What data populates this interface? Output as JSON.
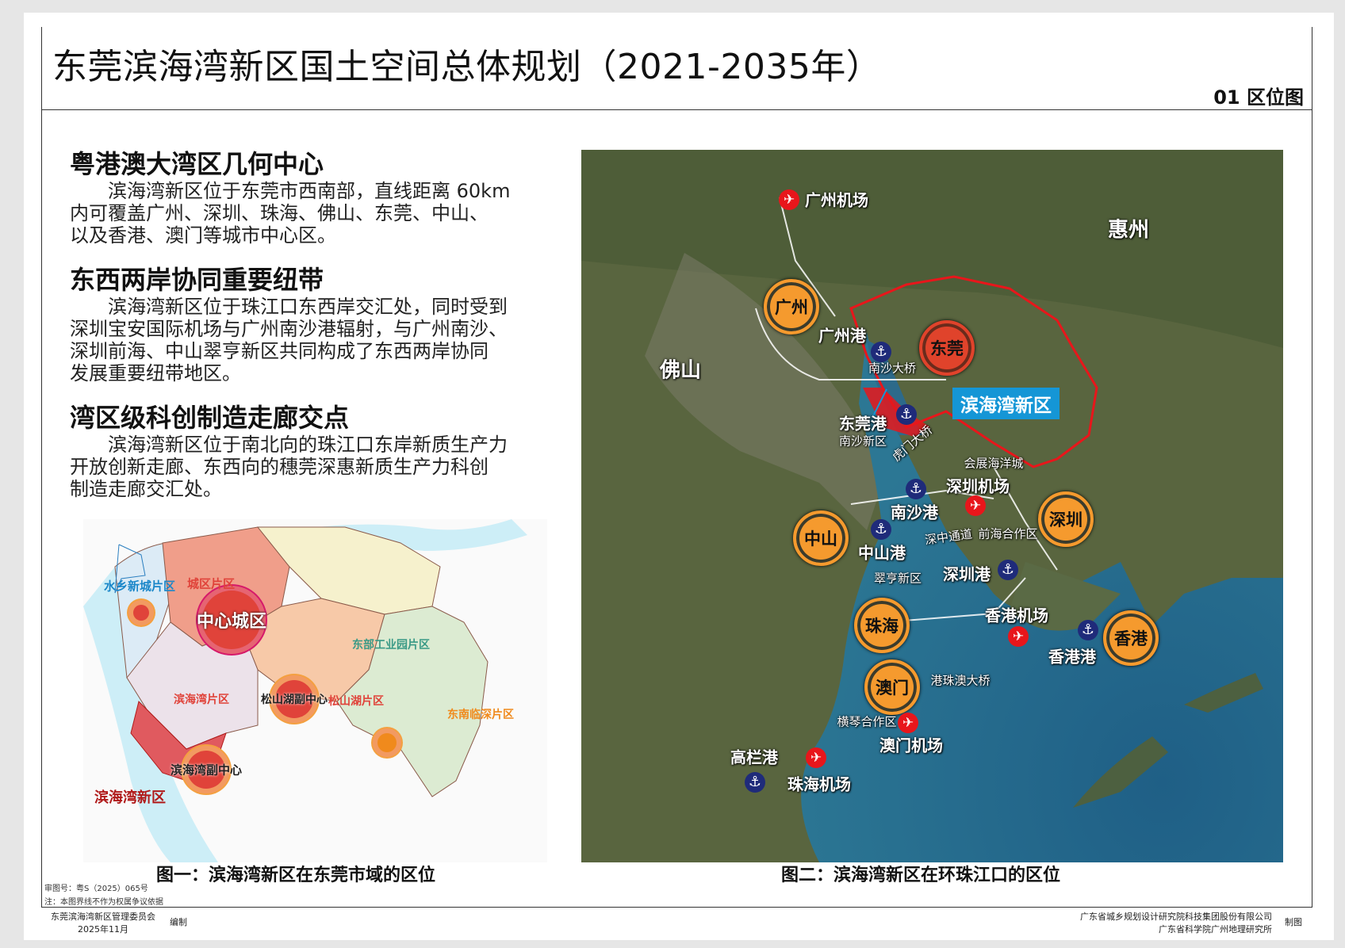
{
  "header": {
    "title": "东莞滨海湾新区国土空间总体规划（2021-2035年）",
    "sheet": "01 区位图"
  },
  "sections": [
    {
      "heading": "粤港澳大湾区几何中心",
      "lines": [
        "　　滨海湾新区位于东莞市西南部，直线距离 60km",
        "内可覆盖广州、深圳、珠海、佛山、东莞、中山、",
        "以及香港、澳门等城市中心区。"
      ]
    },
    {
      "heading": "东西两岸协同重要纽带",
      "lines": [
        "　　滨海湾新区位于珠江口东西岸交汇处，同时受到",
        "深圳宝安国际机场与广州南沙港辐射，与广州南沙、",
        "深圳前海、中山翠亨新区共同构成了东西两岸协同",
        "发展重要纽带地区。"
      ]
    },
    {
      "heading": "湾区级科创制造走廊交点",
      "lines": [
        "　　滨海湾新区位于南北向的珠江口东岸新质生产力",
        "开放创新走廊、东西向的穗莞深惠新质生产力科创",
        "制造走廊交汇处。"
      ]
    }
  ],
  "map1": {
    "caption": "图一：滨海湾新区在东莞市域的区位",
    "labels": [
      {
        "text": "中心城区",
        "color": "#ffffff"
      },
      {
        "text": "水乡新城片区",
        "color": "#1b87c9"
      },
      {
        "text": "城区片区",
        "color": "#e0433a"
      },
      {
        "text": "东部工业园片区",
        "color": "#3a9a86"
      },
      {
        "text": "滨海湾片区",
        "color": "#e0433a"
      },
      {
        "text": "松山湖副中心",
        "color": "#222222"
      },
      {
        "text": "松山湖片区",
        "color": "#e0433a"
      },
      {
        "text": "东南临深片区",
        "color": "#f08a1c"
      },
      {
        "text": "滨海湾副中心",
        "color": "#222222"
      },
      {
        "text": "滨海湾新区",
        "color": "#b01a1a"
      }
    ]
  },
  "map2": {
    "caption": "图二：滨海湾新区在环珠江口的区位",
    "highlight": "滨海湾新区",
    "cities": [
      {
        "name": "广州",
        "type": "city"
      },
      {
        "name": "东莞",
        "type": "dongguan"
      },
      {
        "name": "深圳",
        "type": "city"
      },
      {
        "name": "中山",
        "type": "city"
      },
      {
        "name": "珠海",
        "type": "city"
      },
      {
        "name": "香港",
        "type": "city"
      },
      {
        "name": "澳门",
        "type": "city"
      }
    ],
    "regions": [
      "惠州",
      "佛山"
    ],
    "ports": [
      "广州港",
      "东莞港",
      "南沙港",
      "中山港",
      "深圳港",
      "香港港",
      "高栏港"
    ],
    "airports": [
      "广州机场",
      "深圳机场",
      "香港机场",
      "澳门机场",
      "珠海机场"
    ],
    "places": [
      "南沙大桥",
      "南沙新区",
      "虎门大桥",
      "会展海洋城",
      "深中通道",
      "前海合作区",
      "翠亨新区",
      "港珠澳大桥",
      "横琴合作区"
    ],
    "icons": {
      "port": "anchor-icon",
      "airport": "airplane-icon"
    },
    "colors": {
      "city": "#f59a2e",
      "dongguan": "#e0432b",
      "port": "#1f2b7a",
      "airport": "#e8161b",
      "highlight": "#1596d6",
      "boundary": "#e8161b"
    }
  },
  "notes": [
    "审图号：粤S（2025）065号",
    "注：本图界线不作为权属争议依据"
  ],
  "footer": {
    "org": "东莞滨海湾新区管理委员会",
    "date": "2025年11月",
    "compiled": "编制",
    "mapper1": "广东省城乡规划设计研究院科技集团股份有限公司",
    "mapper2": "广东省科学院广州地理研究所",
    "drawn": "制图"
  }
}
